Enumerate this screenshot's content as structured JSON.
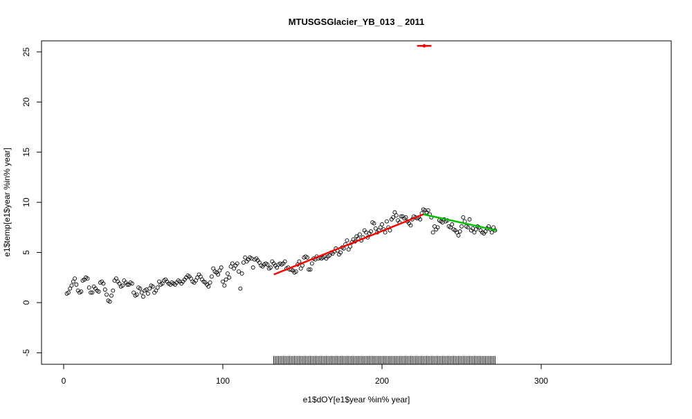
{
  "chart_data": {
    "type": "scatter",
    "title": "MTUSGSGlacier_YB_013 _ 2011",
    "xlabel": "e1$dOY[e1$year %in% year]",
    "ylabel": "e1$temp[e1$year %in% year]",
    "xlim": [
      -13.9,
      381.7
    ],
    "ylim": [
      -6.15,
      26.1
    ],
    "xticks": [
      0,
      100,
      200,
      300
    ],
    "yticks": [
      -5,
      0,
      5,
      10,
      15,
      20,
      25
    ],
    "color": "#000000",
    "x": [
      2,
      3,
      4,
      5,
      6,
      7,
      8,
      9,
      10,
      11,
      12,
      13,
      14,
      15,
      16,
      17,
      18,
      19,
      20,
      21,
      22,
      23,
      24,
      25,
      26,
      27,
      28,
      29,
      30,
      31,
      32,
      33,
      34,
      35,
      36,
      37,
      38,
      39,
      40,
      41,
      42,
      43,
      44,
      45,
      46,
      47,
      48,
      49,
      50,
      51,
      52,
      53,
      54,
      55,
      56,
      57,
      58,
      59,
      60,
      61,
      62,
      63,
      64,
      65,
      66,
      67,
      68,
      69,
      70,
      71,
      72,
      73,
      74,
      75,
      76,
      77,
      78,
      79,
      80,
      81,
      82,
      83,
      84,
      85,
      86,
      87,
      88,
      89,
      90,
      91,
      92,
      93,
      94,
      95,
      96,
      97,
      98,
      99,
      100,
      101,
      102,
      103,
      104,
      105,
      106,
      107,
      108,
      109,
      110,
      111,
      112,
      113,
      114,
      115,
      116,
      117,
      118,
      119,
      120,
      121,
      122,
      123,
      124,
      125,
      126,
      127,
      128,
      129,
      130,
      131,
      132,
      133,
      134,
      135,
      136,
      137,
      138,
      139,
      140,
      141,
      142,
      143,
      144,
      145,
      146,
      147,
      148,
      149,
      150,
      151,
      152,
      153,
      154,
      155,
      156,
      157,
      158,
      159,
      160,
      161,
      162,
      163,
      164,
      165,
      166,
      167,
      168,
      169,
      170,
      171,
      172,
      173,
      174,
      175,
      176,
      177,
      178,
      179,
      180,
      181,
      182,
      183,
      184,
      185,
      186,
      187,
      188,
      189,
      190,
      191,
      192,
      193,
      194,
      195,
      196,
      197,
      198,
      199,
      200,
      201,
      202,
      203,
      204,
      205,
      206,
      207,
      208,
      209,
      210,
      211,
      212,
      213,
      214,
      215,
      216,
      217,
      218,
      219,
      220,
      221,
      222,
      223,
      224,
      225,
      226,
      227,
      228,
      229,
      230,
      231,
      232,
      233,
      234,
      235,
      236,
      237,
      238,
      239,
      240,
      241,
      242,
      243,
      244,
      245,
      246,
      247,
      248,
      249,
      250,
      251,
      252,
      253,
      254,
      255,
      256,
      257,
      258,
      259,
      260,
      261,
      262,
      263,
      264,
      265,
      266,
      267,
      268,
      269,
      270,
      271
    ],
    "values": [
      0.9,
      1.0,
      1.4,
      1.7,
      2.1,
      2.4,
      1.8,
      1.2,
      1.0,
      1.1,
      2.2,
      2.3,
      2.5,
      2.4,
      1.5,
      1.0,
      1.0,
      1.6,
      1.4,
      1.2,
      1.1,
      2.0,
      2.1,
      1.9,
      1.3,
      0.8,
      0.2,
      0.1,
      0.7,
      1.2,
      2.2,
      2.4,
      2.1,
      1.9,
      1.6,
      1.7,
      2.2,
      2.0,
      1.8,
      1.8,
      2.0,
      1.9,
      1.0,
      0.7,
      0.8,
      1.5,
      1.4,
      1.0,
      0.6,
      1.2,
      1.3,
      0.9,
      1.4,
      1.7,
      1.6,
      1.0,
      1.2,
      1.5,
      2.1,
      1.8,
      1.9,
      2.2,
      2.3,
      2.1,
      1.9,
      1.8,
      2.0,
      1.9,
      1.8,
      2.0,
      2.2,
      2.1,
      1.9,
      2.1,
      2.3,
      2.5,
      2.7,
      2.6,
      2.4,
      2.1,
      2.0,
      2.2,
      2.5,
      2.8,
      2.6,
      2.3,
      2.1,
      2.0,
      1.8,
      1.6,
      2.0,
      2.6,
      3.4,
      3.1,
      3.0,
      2.8,
      3.2,
      3.5,
      2.1,
      1.7,
      2.3,
      2.9,
      2.5,
      3.6,
      3.9,
      3.4,
      3.7,
      3.9,
      3.1,
      1.4,
      2.9,
      4.0,
      4.5,
      4.1,
      4.3,
      4.5,
      4.4,
      3.5,
      4.3,
      4.4,
      4.2,
      4.0,
      3.7,
      3.6,
      3.8,
      3.9,
      3.8,
      3.4,
      3.5,
      4.1,
      3.9,
      3.7,
      3.5,
      3.8,
      3.9,
      3.8,
      3.9,
      4.1,
      3.4,
      3.5,
      3.3,
      3.3,
      3.2,
      3.0,
      3.1,
      3.8,
      4.1,
      3.4,
      3.7,
      4.5,
      4.6,
      4.5,
      3.3,
      3.3,
      3.9,
      4.4,
      4.3,
      4.6,
      4.4,
      4.5,
      4.4,
      4.5,
      4.6,
      4.4,
      4.6,
      4.7,
      5.0,
      4.9,
      5.1,
      5.4,
      5.2,
      4.8,
      5.0,
      5.5,
      5.4,
      5.8,
      6.2,
      5.3,
      5.6,
      6.0,
      6.3,
      6.1,
      6.6,
      6.4,
      6.8,
      6.2,
      6.5,
      7.2,
      7.0,
      6.5,
      6.9,
      7.1,
      8.0,
      7.9,
      7.4,
      7.0,
      7.2,
      7.5,
      7.8,
      7.3,
      7.0,
      8.1,
      7.5,
      7.2,
      8.3,
      8.5,
      9.0,
      8.7,
      8.2,
      8.0,
      8.6,
      8.6,
      8.4,
      8.5,
      8.1,
      7.9,
      7.7,
      8.3,
      8.6,
      8.5,
      8.4,
      8.5,
      8.3,
      8.9,
      9.3,
      9.2,
      9.0,
      9.2,
      8.8,
      8.5,
      7.0,
      7.6,
      7.3,
      7.5,
      8.2,
      8.1,
      8.0,
      8.3,
      8.1,
      8.2,
      7.6,
      7.5,
      7.8,
      7.3,
      7.2,
      7.0,
      6.7,
      7.1,
      7.6,
      8.5,
      8.1,
      7.6,
      7.5,
      8.3,
      7.2,
      7.4,
      7.0,
      7.3,
      7.6,
      7.5,
      7.2,
      7.0,
      6.9,
      7.1,
      7.4,
      7.6,
      7.3,
      7.0,
      7.5,
      7.2
    ],
    "fits": [
      {
        "color": "#ff0000",
        "x": [
          132,
          226
        ],
        "values": [
          2.8,
          8.8
        ]
      },
      {
        "color": "#00c000",
        "x": [
          226,
          272
        ],
        "values": [
          8.8,
          7.2
        ]
      }
    ],
    "rug_color": "#000000",
    "highlight": {
      "x": 226.5,
      "y": 25.6,
      "xerr": 4.5,
      "color": "#ff0000"
    }
  }
}
